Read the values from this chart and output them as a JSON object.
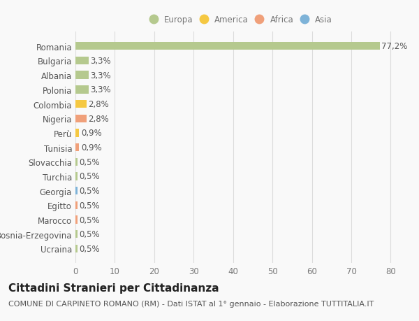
{
  "categories": [
    "Ucraina",
    "Bosnia-Erzegovina",
    "Marocco",
    "Egitto",
    "Georgia",
    "Turchia",
    "Slovacchia",
    "Tunisia",
    "Perù",
    "Nigeria",
    "Colombia",
    "Polonia",
    "Albania",
    "Bulgaria",
    "Romania"
  ],
  "values": [
    0.5,
    0.5,
    0.5,
    0.5,
    0.5,
    0.5,
    0.5,
    0.9,
    0.9,
    2.8,
    2.8,
    3.3,
    3.3,
    3.3,
    77.2
  ],
  "labels": [
    "0,5%",
    "0,5%",
    "0,5%",
    "0,5%",
    "0,5%",
    "0,5%",
    "0,5%",
    "0,9%",
    "0,9%",
    "2,8%",
    "2,8%",
    "3,3%",
    "3,3%",
    "3,3%",
    "77,2%"
  ],
  "bar_colors": [
    "#b5c98e",
    "#b5c98e",
    "#f0a07a",
    "#f0a07a",
    "#7eb3d8",
    "#b5c98e",
    "#b5c98e",
    "#f0a07a",
    "#f5c842",
    "#f0a07a",
    "#f5c842",
    "#b5c98e",
    "#b5c98e",
    "#b5c98e",
    "#b5c98e"
  ],
  "legend_labels": [
    "Europa",
    "America",
    "Africa",
    "Asia"
  ],
  "legend_colors": [
    "#b5c98e",
    "#f5c842",
    "#f0a07a",
    "#7eb3d8"
  ],
  "title": "Cittadini Stranieri per Cittadinanza",
  "subtitle": "COMUNE DI CARPINETO ROMANO (RM) - Dati ISTAT al 1° gennaio - Elaborazione TUTTITALIA.IT",
  "xlim": [
    0,
    84
  ],
  "xticks": [
    0,
    10,
    20,
    30,
    40,
    50,
    60,
    70,
    80
  ],
  "bg_color": "#f9f9f9",
  "bar_height": 0.55,
  "label_fontsize": 8.5,
  "tick_fontsize": 8.5,
  "title_fontsize": 11,
  "subtitle_fontsize": 8
}
